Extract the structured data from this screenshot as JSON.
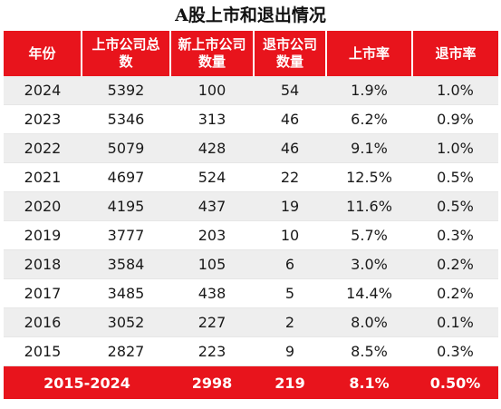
{
  "title": "A股上市和退出情况",
  "headers": [
    "年份",
    "上市公司总数",
    "新上市公司数量",
    "退市公司数量",
    "上市率",
    "退市率"
  ],
  "rows": [
    [
      "2024",
      "5392",
      "100",
      "54",
      "1.9%",
      "1.0%"
    ],
    [
      "2023",
      "5346",
      "313",
      "46",
      "6.2%",
      "0.9%"
    ],
    [
      "2022",
      "5079",
      "428",
      "46",
      "9.1%",
      "1.0%"
    ],
    [
      "2021",
      "4697",
      "524",
      "22",
      "12.5%",
      "0.5%"
    ],
    [
      "2020",
      "4195",
      "437",
      "19",
      "11.6%",
      "0.5%"
    ],
    [
      "2019",
      "3777",
      "203",
      "10",
      "5.7%",
      "0.3%"
    ],
    [
      "2018",
      "3584",
      "105",
      "6",
      "3.0%",
      "0.2%"
    ],
    [
      "2017",
      "3485",
      "438",
      "5",
      "14.4%",
      "0.2%"
    ],
    [
      "2016",
      "3052",
      "227",
      "2",
      "8.0%",
      "0.1%"
    ],
    [
      "2015",
      "2827",
      "223",
      "9",
      "8.5%",
      "0.3%"
    ]
  ],
  "summary": {
    "label": "2015-2024",
    "new_listings": "2998",
    "delistings": "219",
    "listing_rate": "8.1%",
    "delisting_rate": "0.50%"
  },
  "colors": {
    "header_bg": "#e8141c",
    "header_text": "#ffffff",
    "row_shade": "#eeeeee"
  }
}
